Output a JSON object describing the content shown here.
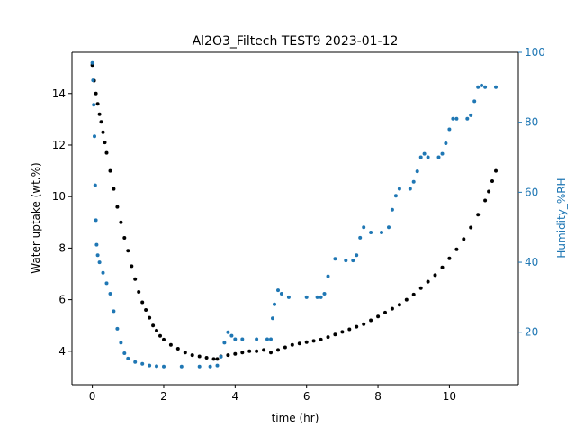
{
  "chart_data": {
    "type": "scatter",
    "title": "Al2O3_Filtech TEST9 2023-01-12",
    "xlabel": "time (hr)",
    "ylabel_left": "Water uptake (wt.%)",
    "ylabel_right": "Humidity_%RH",
    "xlim": [
      -0.57,
      11.93
    ],
    "ylim_left": [
      2.7,
      15.6
    ],
    "ylim_right": [
      5,
      100
    ],
    "x_ticks": [
      0,
      2,
      4,
      6,
      8,
      10
    ],
    "y_left_ticks": [
      4,
      6,
      8,
      10,
      12,
      14
    ],
    "y_right_ticks": [
      20,
      40,
      60,
      80,
      100
    ],
    "grid": false,
    "colors": {
      "water_uptake": "#000000",
      "humidity": "#1f77b4",
      "axis_right": "#1f77b4"
    },
    "series": [
      {
        "axis": "left",
        "marker": "dot",
        "x": [
          0.0,
          0.05,
          0.1,
          0.15,
          0.2,
          0.25,
          0.3,
          0.35,
          0.4,
          0.5,
          0.6,
          0.7,
          0.8,
          0.9,
          1.0,
          1.1,
          1.2,
          1.3,
          1.4,
          1.5,
          1.6,
          1.7,
          1.8,
          1.9,
          2.0,
          2.2,
          2.4,
          2.6,
          2.8,
          3.0,
          3.2,
          3.4,
          3.5,
          3.6,
          3.8,
          4.0,
          4.2,
          4.4,
          4.6,
          4.8,
          5.0,
          5.2,
          5.4,
          5.6,
          5.8,
          6.0,
          6.2,
          6.4,
          6.6,
          6.8,
          7.0,
          7.2,
          7.4,
          7.6,
          7.8,
          8.0,
          8.2,
          8.4,
          8.6,
          8.8,
          9.0,
          9.2,
          9.4,
          9.6,
          9.8,
          10.0,
          10.2,
          10.4,
          10.6,
          10.8,
          11.0,
          11.1,
          11.2,
          11.3
        ],
        "y": [
          15.1,
          14.5,
          14.0,
          13.6,
          13.2,
          12.9,
          12.5,
          12.1,
          11.7,
          11.0,
          10.3,
          9.6,
          9.0,
          8.4,
          7.9,
          7.3,
          6.8,
          6.3,
          5.9,
          5.6,
          5.3,
          5.0,
          4.8,
          4.6,
          4.45,
          4.25,
          4.1,
          3.95,
          3.85,
          3.8,
          3.75,
          3.7,
          3.7,
          3.8,
          3.85,
          3.9,
          3.95,
          4.0,
          4.0,
          4.05,
          3.95,
          4.05,
          4.15,
          4.25,
          4.3,
          4.35,
          4.4,
          4.45,
          4.55,
          4.65,
          4.75,
          4.85,
          4.95,
          5.05,
          5.2,
          5.35,
          5.5,
          5.65,
          5.8,
          6.0,
          6.2,
          6.45,
          6.7,
          6.95,
          7.25,
          7.6,
          7.95,
          8.35,
          8.8,
          9.3,
          9.85,
          10.2,
          10.6,
          11.0
        ]
      },
      {
        "axis": "right",
        "marker": "dot",
        "x": [
          0.0,
          0.02,
          0.04,
          0.06,
          0.08,
          0.1,
          0.12,
          0.15,
          0.2,
          0.3,
          0.4,
          0.5,
          0.6,
          0.7,
          0.8,
          0.9,
          1.0,
          1.2,
          1.4,
          1.6,
          1.8,
          2.0,
          2.5,
          3.0,
          3.3,
          3.5,
          3.6,
          3.7,
          3.8,
          3.9,
          4.0,
          4.2,
          4.6,
          4.9,
          5.0,
          5.05,
          5.1,
          5.2,
          5.3,
          5.5,
          6.0,
          6.3,
          6.4,
          6.5,
          6.6,
          6.8,
          7.1,
          7.3,
          7.4,
          7.5,
          7.6,
          7.8,
          8.1,
          8.3,
          8.4,
          8.5,
          8.6,
          8.9,
          9.0,
          9.1,
          9.2,
          9.3,
          9.4,
          9.7,
          9.8,
          9.9,
          10.0,
          10.1,
          10.2,
          10.5,
          10.6,
          10.7,
          10.8,
          10.9,
          11.0,
          11.3
        ],
        "y": [
          97,
          92,
          85,
          76,
          62,
          52,
          45,
          42,
          40,
          37,
          34,
          31,
          26,
          21,
          17,
          14,
          12.5,
          11.5,
          11,
          10.5,
          10.3,
          10.2,
          10.2,
          10.2,
          10.2,
          10.5,
          13,
          17,
          20,
          19,
          18,
          18,
          18,
          18,
          18,
          24,
          28,
          32,
          31,
          30,
          30,
          30,
          30,
          31,
          36,
          41,
          40.5,
          40.5,
          42,
          47,
          50,
          48.5,
          48.5,
          50,
          55,
          59,
          61,
          61,
          63,
          66,
          70,
          71,
          70,
          70,
          71,
          74,
          78,
          81,
          81,
          81,
          82,
          86,
          90,
          90.5,
          90,
          90
        ]
      }
    ]
  }
}
